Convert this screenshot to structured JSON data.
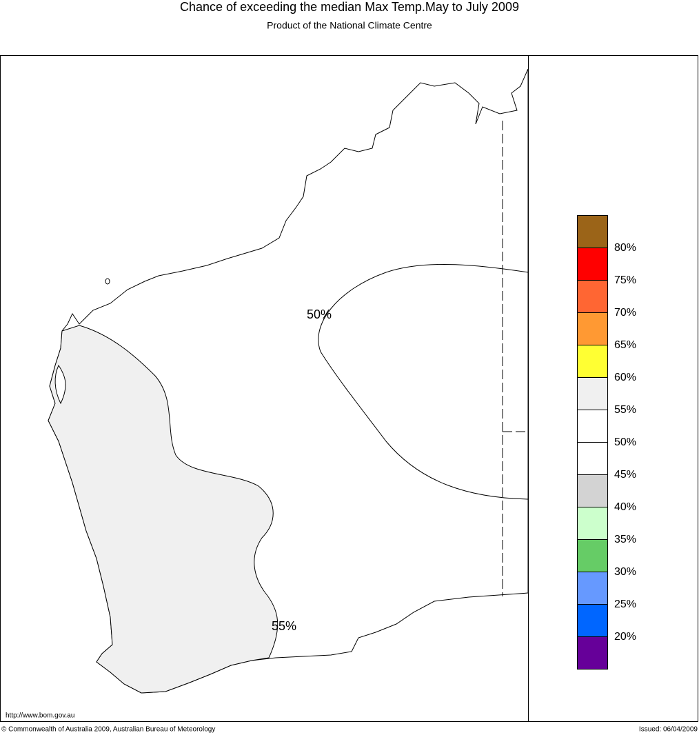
{
  "header": {
    "title": "Chance of exceeding the median Max Temp.May to July 2009",
    "subtitle": "Product of the National Climate Centre"
  },
  "map": {
    "contour_labels": [
      "50%",
      "55%"
    ]
  },
  "legend": {
    "colors": [
      "#9b6418",
      "#ff0000",
      "#ff6633",
      "#ff9933",
      "#ffff33",
      "#f0f0f0",
      "#ffffff",
      "#ffffff",
      "#d3d3d3",
      "#ccffcc",
      "#66cc66",
      "#6699ff",
      "#0066ff",
      "#660099"
    ],
    "labels": [
      "80%",
      "75%",
      "70%",
      "65%",
      "60%",
      "55%",
      "50%",
      "45%",
      "40%",
      "35%",
      "30%",
      "25%",
      "20%"
    ]
  },
  "footer": {
    "url": "http://www.bom.gov.au",
    "copyright": "© Commonwealth of Australia 2009, Australian Bureau of Meteorology",
    "issued": "Issued: 06/04/2009"
  }
}
